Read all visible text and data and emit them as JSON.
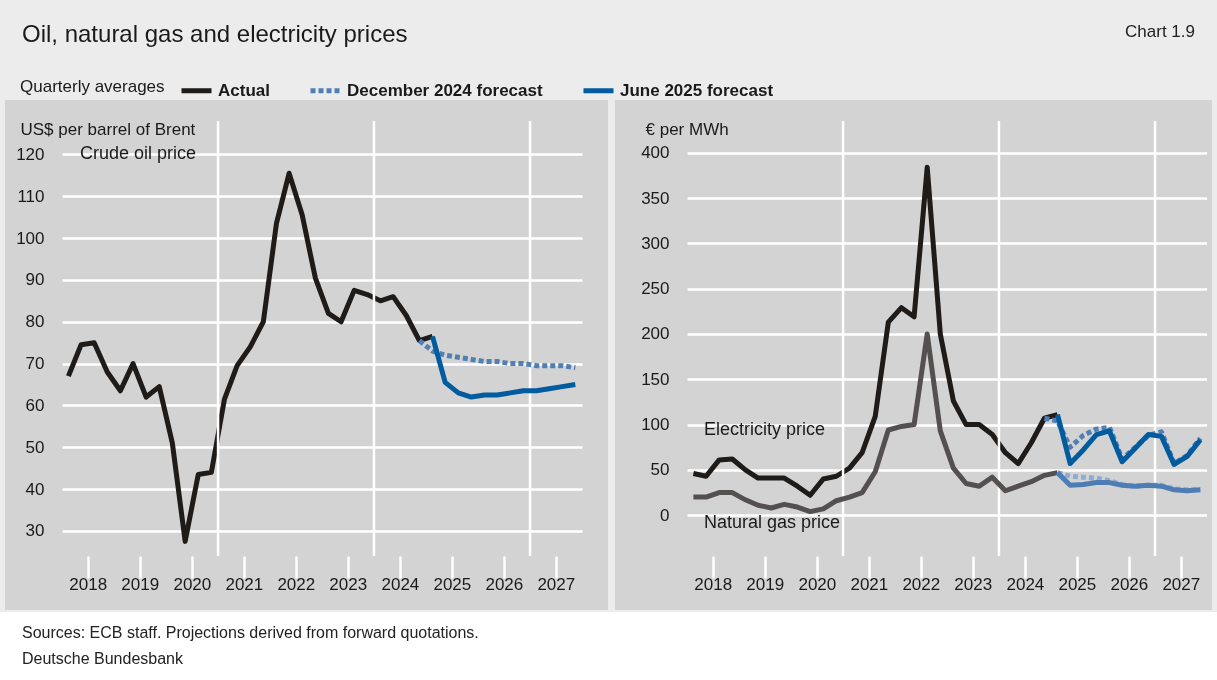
{
  "chart_data": [
    {
      "type": "line",
      "title": "Oil, natural gas and electricity prices",
      "legend_title": "Quarterly averages",
      "legend": "top",
      "ylabel": "US$ per barrel of Brent",
      "grid": "y",
      "annotations": [
        "Crude oil price",
        "Chart 1.9",
        "Sources: ECB staff. Projections derived from forward quotations.",
        "Deutsche Bundesbank"
      ],
      "x": [
        "2018-02-15",
        "2018-05-15",
        "2018-08-15",
        "2018-11-15",
        "2019-02-15",
        "2019-05-15",
        "2019-08-15",
        "2019-11-15",
        "2020-02-15",
        "2020-05-15",
        "2020-08-15",
        "2020-11-15",
        "2021-02-15",
        "2021-05-15",
        "2021-08-15",
        "2021-11-15",
        "2022-02-15",
        "2022-05-15",
        "2022-08-15",
        "2022-11-15",
        "2023-02-15",
        "2023-05-15",
        "2023-08-15",
        "2023-11-15",
        "2024-02-15",
        "2024-05-15",
        "2024-08-15",
        "2024-11-15",
        "2025-02-15",
        "2025-05-15",
        "2025-08-15",
        "2025-11-15",
        "2026-02-15",
        "2026-05-15",
        "2026-08-15",
        "2026-11-15",
        "2027-02-15",
        "2027-05-15",
        "2027-08-15",
        "2027-11-15"
      ],
      "xlim": [
        "2018-01-01",
        "2028-01-01"
      ],
      "xticks": [
        {
          "value": "2018-07-01",
          "label": "2018"
        },
        {
          "value": "2019-07-01",
          "label": "2019"
        },
        {
          "value": "2020-07-01",
          "label": "2020"
        },
        {
          "value": "2021-07-01",
          "label": "2021"
        },
        {
          "value": "2022-07-01",
          "label": "2022"
        },
        {
          "value": "2023-07-01",
          "label": "2023"
        },
        {
          "value": "2024-07-01",
          "label": "2024"
        },
        {
          "value": "2025-07-01",
          "label": "2025"
        },
        {
          "value": "2026-07-01",
          "label": "2026"
        },
        {
          "value": "2027-07-01",
          "label": "2027"
        }
      ],
      "ylim": [
        24,
        128
      ],
      "yticks": [
        30,
        40,
        50,
        60,
        70,
        80,
        90,
        100,
        110,
        120
      ],
      "ref_lines": [
        {
          "axis": "x",
          "value": "2021-01-01",
          "color": "#ffffff"
        },
        {
          "axis": "x",
          "value": "2024-01-01",
          "color": "#ffffff"
        },
        {
          "axis": "x",
          "value": "2027-01-01",
          "color": "#ffffff"
        }
      ],
      "series": [
        {
          "name": "Actual",
          "color": "#1e1b19",
          "line_style": "solid",
          "values": [
            67,
            74.5,
            75,
            68,
            63.5,
            70,
            62,
            64.5,
            51,
            27.5,
            43.5,
            44,
            61.5,
            69.5,
            74,
            80,
            103.5,
            115.5,
            105.5,
            90.5,
            82,
            80,
            87.5,
            86.5,
            85,
            86,
            81.5,
            75.5,
            76.5,
            null,
            null,
            null,
            null,
            null,
            null,
            null,
            null,
            null,
            null,
            null
          ]
        },
        {
          "name": "December 2024 forecast",
          "color": "#4f7fb3",
          "line_style": "dashed",
          "values": [
            null,
            null,
            null,
            null,
            null,
            null,
            null,
            null,
            null,
            null,
            null,
            null,
            null,
            null,
            null,
            null,
            null,
            null,
            null,
            null,
            null,
            null,
            null,
            null,
            null,
            null,
            null,
            75.5,
            73,
            72,
            71.5,
            71,
            70.5,
            70.5,
            70,
            70,
            69.5,
            69.5,
            69.5,
            69
          ]
        },
        {
          "name": "June 2025 forecast",
          "color": "#005b9f",
          "line_style": "solid",
          "values": [
            null,
            null,
            null,
            null,
            null,
            null,
            null,
            null,
            null,
            null,
            null,
            null,
            null,
            null,
            null,
            null,
            null,
            null,
            null,
            null,
            null,
            null,
            null,
            null,
            null,
            null,
            null,
            null,
            76.5,
            65.5,
            63,
            62,
            62.5,
            62.5,
            63,
            63.5,
            63.5,
            64,
            64.5,
            65
          ]
        }
      ]
    },
    {
      "type": "line",
      "ylabel": "€ per MWh",
      "grid": "y",
      "annotations": [
        "Electricity price",
        "Natural gas price"
      ],
      "x": [
        "2018-02-15",
        "2018-05-15",
        "2018-08-15",
        "2018-11-15",
        "2019-02-15",
        "2019-05-15",
        "2019-08-15",
        "2019-11-15",
        "2020-02-15",
        "2020-05-15",
        "2020-08-15",
        "2020-11-15",
        "2021-02-15",
        "2021-05-15",
        "2021-08-15",
        "2021-11-15",
        "2022-02-15",
        "2022-05-15",
        "2022-08-15",
        "2022-11-15",
        "2023-02-15",
        "2023-05-15",
        "2023-08-15",
        "2023-11-15",
        "2024-02-15",
        "2024-05-15",
        "2024-08-15",
        "2024-11-15",
        "2025-02-15",
        "2025-05-15",
        "2025-08-15",
        "2025-11-15",
        "2026-02-15",
        "2026-05-15",
        "2026-08-15",
        "2026-11-15",
        "2027-02-15",
        "2027-05-15",
        "2027-08-15",
        "2027-11-15"
      ],
      "xlim": [
        "2018-01-01",
        "2028-01-01"
      ],
      "xticks": [
        {
          "value": "2018-07-01",
          "label": "2018"
        },
        {
          "value": "2019-07-01",
          "label": "2019"
        },
        {
          "value": "2020-07-01",
          "label": "2020"
        },
        {
          "value": "2021-07-01",
          "label": "2021"
        },
        {
          "value": "2022-07-01",
          "label": "2022"
        },
        {
          "value": "2023-07-01",
          "label": "2023"
        },
        {
          "value": "2024-07-01",
          "label": "2024"
        },
        {
          "value": "2025-07-01",
          "label": "2025"
        },
        {
          "value": "2026-07-01",
          "label": "2026"
        },
        {
          "value": "2027-07-01",
          "label": "2027"
        }
      ],
      "ylim": [
        -45,
        435
      ],
      "yticks": [
        0,
        50,
        100,
        150,
        200,
        250,
        300,
        350,
        400
      ],
      "ref_lines": [
        {
          "axis": "x",
          "value": "2021-01-01",
          "color": "#ffffff"
        },
        {
          "axis": "x",
          "value": "2024-01-01",
          "color": "#ffffff"
        },
        {
          "axis": "x",
          "value": "2027-01-01",
          "color": "#ffffff"
        }
      ],
      "series": [
        {
          "color": "#1e1b19",
          "line_style": "solid",
          "values": [
            46,
            43,
            61,
            62,
            50,
            41,
            41,
            41,
            32,
            22,
            40,
            43,
            52,
            69,
            109,
            213,
            229,
            219,
            384,
            200,
            126,
            100,
            100,
            89,
            69,
            57,
            80,
            107,
            111,
            null,
            null,
            null,
            null,
            null,
            null,
            null,
            null,
            null,
            null,
            null
          ]
        },
        {
          "color": "#545050",
          "line_style": "solid",
          "values": [
            20,
            20,
            25,
            25,
            17,
            11,
            8,
            12,
            9,
            4,
            7,
            16,
            20,
            25,
            48,
            94,
            98,
            100,
            200,
            93,
            52,
            35,
            32,
            42,
            27,
            32,
            37,
            44,
            47,
            null,
            null,
            null,
            null,
            null,
            null,
            null,
            null,
            null,
            null,
            null
          ]
        },
        {
          "color": "#4f7fb3",
          "line_style": "dashed",
          "values": [
            null,
            null,
            null,
            null,
            null,
            null,
            null,
            null,
            null,
            null,
            null,
            null,
            null,
            null,
            null,
            null,
            null,
            null,
            null,
            null,
            null,
            null,
            null,
            null,
            null,
            null,
            null,
            107,
            104,
            75,
            88,
            95,
            97,
            62,
            75,
            88,
            92,
            57,
            66,
            85
          ]
        },
        {
          "color": "#8fadd2",
          "line_style": "dashed",
          "values": [
            null,
            null,
            null,
            null,
            null,
            null,
            null,
            null,
            null,
            null,
            null,
            null,
            null,
            null,
            null,
            null,
            null,
            null,
            null,
            null,
            null,
            null,
            null,
            null,
            null,
            null,
            null,
            null,
            47,
            43,
            42,
            41,
            38,
            34,
            32,
            33,
            33,
            29,
            28,
            28
          ]
        },
        {
          "color": "#005b9f",
          "line_style": "solid",
          "values": [
            null,
            null,
            null,
            null,
            null,
            null,
            null,
            null,
            null,
            null,
            null,
            null,
            null,
            null,
            null,
            null,
            null,
            null,
            null,
            null,
            null,
            null,
            null,
            null,
            null,
            null,
            null,
            null,
            111,
            57,
            72,
            89,
            93,
            59,
            74,
            89,
            87,
            56,
            65,
            83
          ]
        },
        {
          "color": "#4d7db4",
          "line_style": "solid",
          "values": [
            null,
            null,
            null,
            null,
            null,
            null,
            null,
            null,
            null,
            null,
            null,
            null,
            null,
            null,
            null,
            null,
            null,
            null,
            null,
            null,
            null,
            null,
            null,
            null,
            null,
            null,
            null,
            null,
            47,
            33,
            34,
            36,
            36,
            33,
            32,
            33,
            32,
            28,
            27,
            28
          ]
        }
      ]
    }
  ]
}
